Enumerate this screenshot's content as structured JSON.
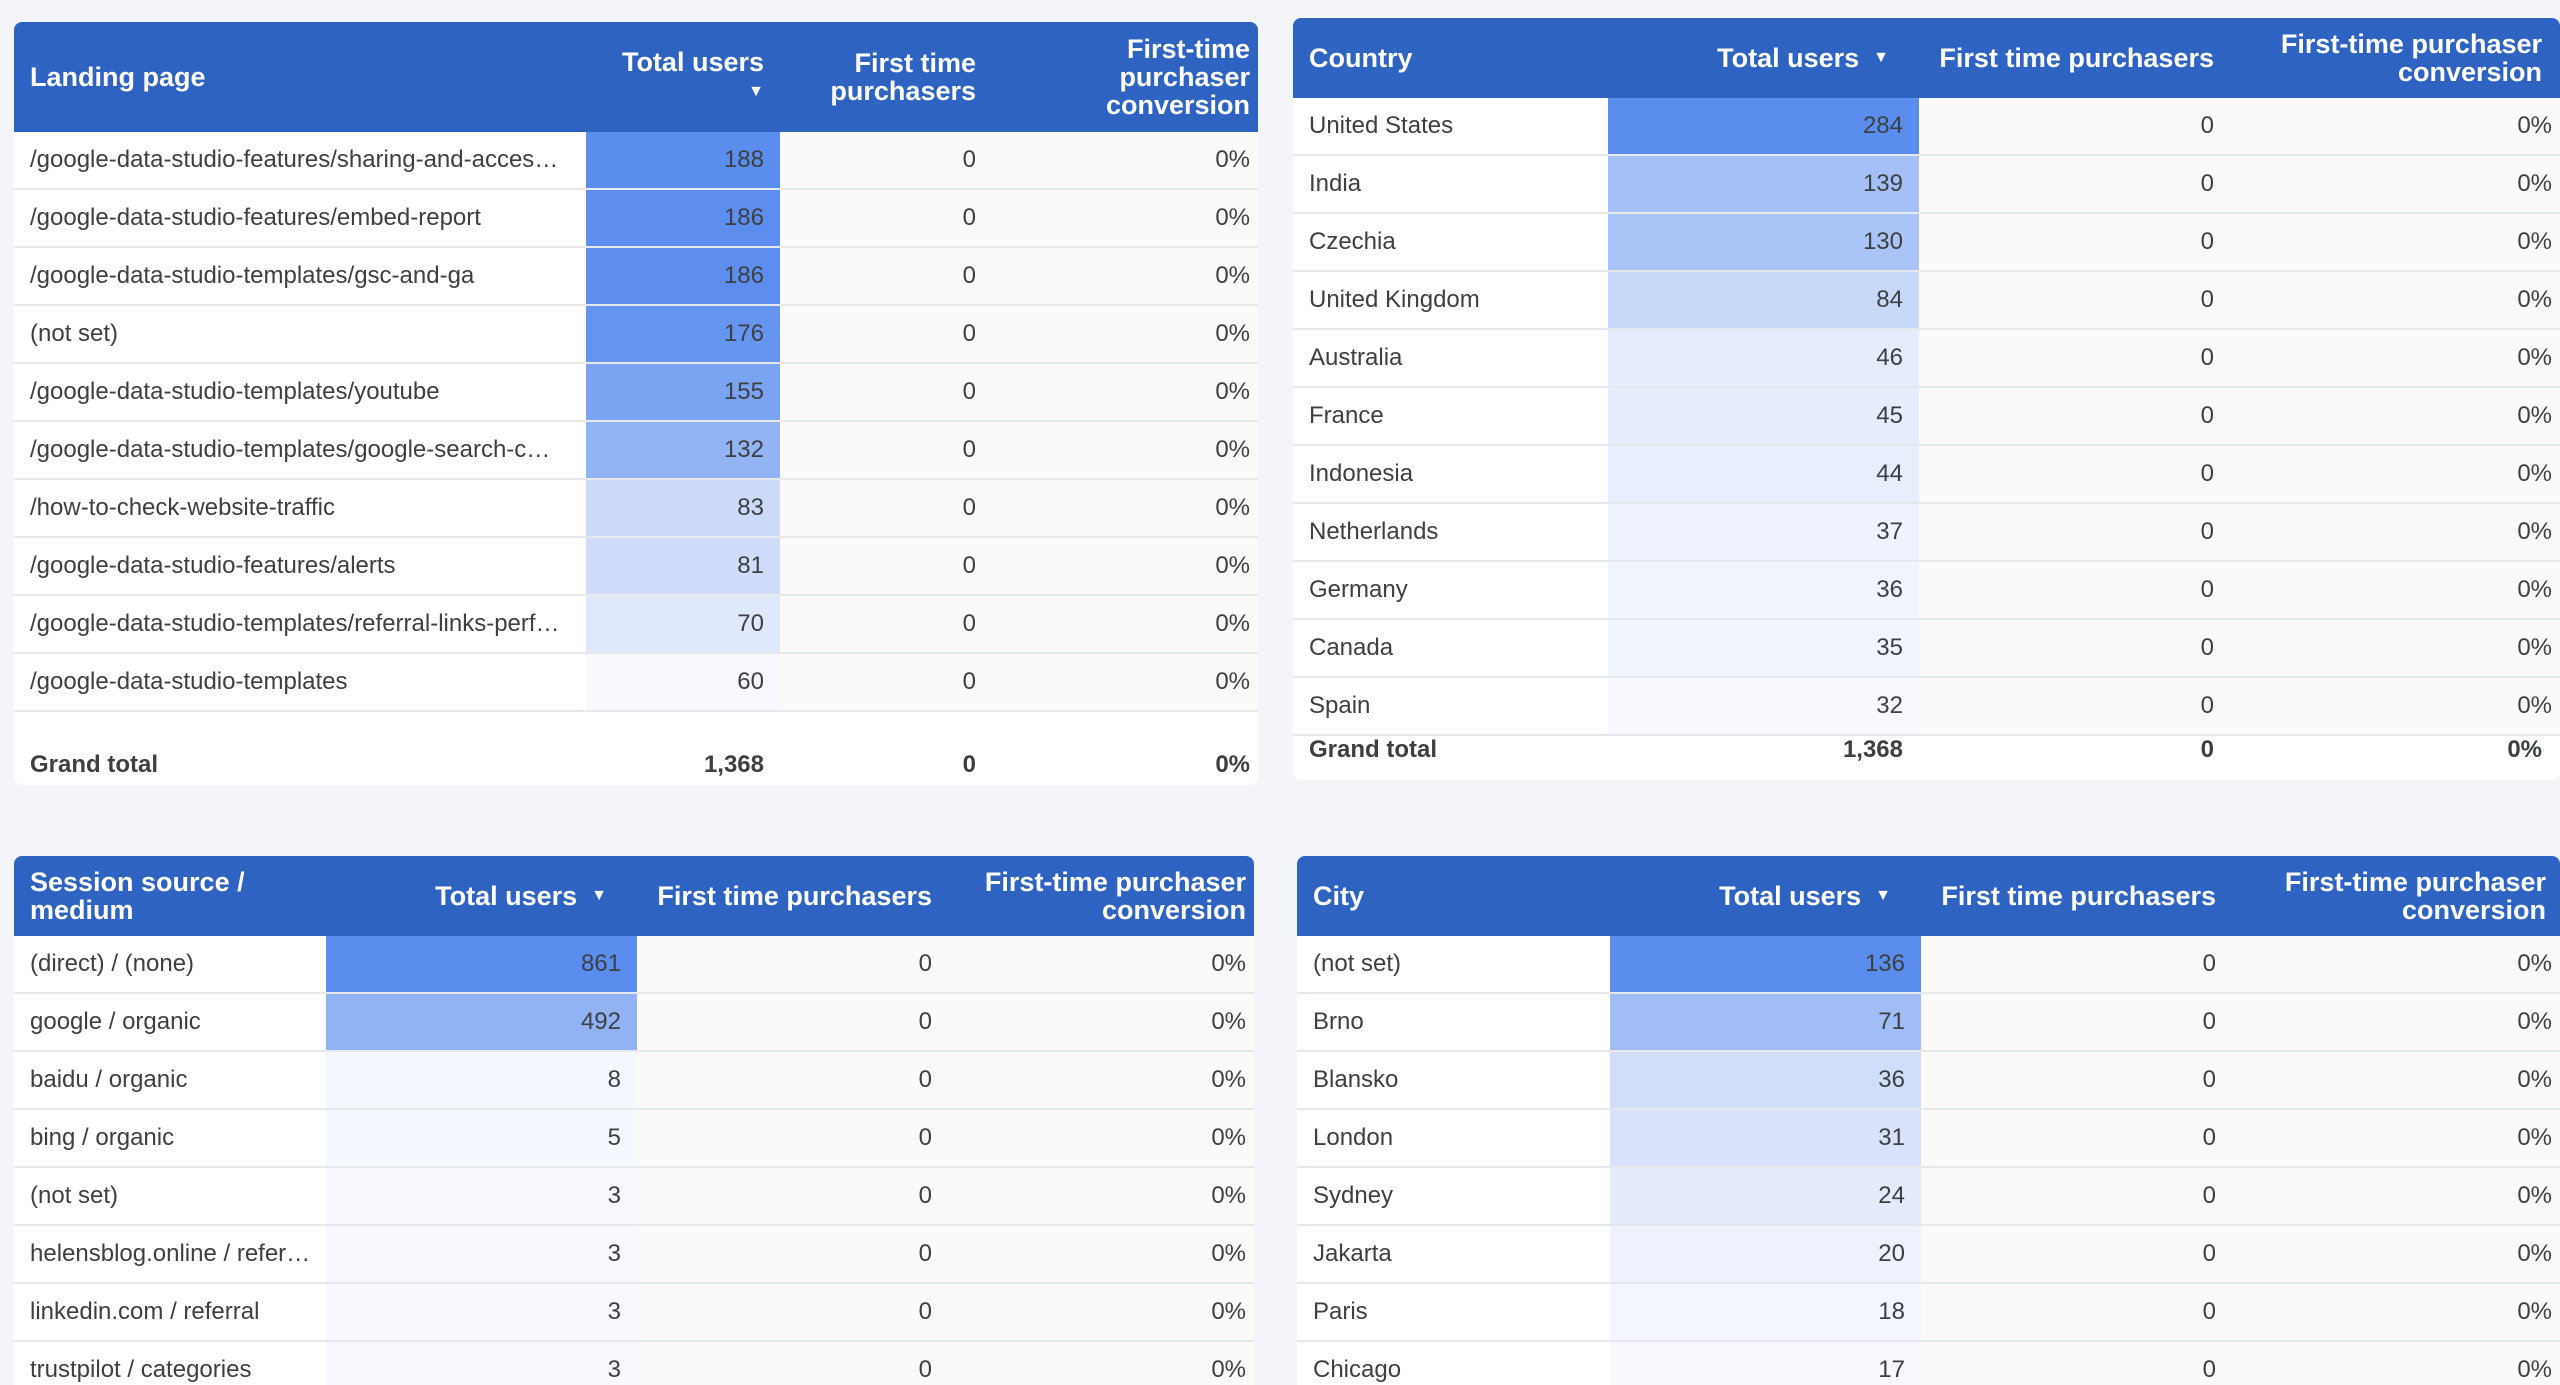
{
  "colors": {
    "header": "#2f63c2",
    "heat_max": "#5b8def",
    "heat_min": "#f7f9fe",
    "zero_cell": "#fcfaf8"
  },
  "tables": [
    {
      "id": "landing",
      "headers": {
        "dimension": "Landing page",
        "total_users": "Total users",
        "first_time": "First time purchasers",
        "conversion": "First-time purchaser conversion"
      },
      "sort_icon": "sort-descending-icon",
      "rows": [
        {
          "label": "/google-data-studio-features/sharing-and-acces…",
          "users": "188",
          "first": "0",
          "conv": "0%"
        },
        {
          "label": "/google-data-studio-features/embed-report",
          "users": "186",
          "first": "0",
          "conv": "0%"
        },
        {
          "label": "/google-data-studio-templates/gsc-and-ga",
          "users": "186",
          "first": "0",
          "conv": "0%"
        },
        {
          "label": "(not set)",
          "users": "176",
          "first": "0",
          "conv": "0%"
        },
        {
          "label": "/google-data-studio-templates/youtube",
          "users": "155",
          "first": "0",
          "conv": "0%"
        },
        {
          "label": "/google-data-studio-templates/google-search-c…",
          "users": "132",
          "first": "0",
          "conv": "0%"
        },
        {
          "label": "/how-to-check-website-traffic",
          "users": "83",
          "first": "0",
          "conv": "0%"
        },
        {
          "label": "/google-data-studio-features/alerts",
          "users": "81",
          "first": "0",
          "conv": "0%"
        },
        {
          "label": "/google-data-studio-templates/referral-links-perf…",
          "users": "70",
          "first": "0",
          "conv": "0%"
        },
        {
          "label": "/google-data-studio-templates",
          "users": "60",
          "first": "0",
          "conv": "0%"
        }
      ],
      "grand_total": {
        "label": "Grand total",
        "users": "1,368",
        "first": "0",
        "conv": "0%"
      }
    },
    {
      "id": "country",
      "headers": {
        "dimension": "Country",
        "total_users": "Total users",
        "first_time": "First time purchasers",
        "conversion": "First-time purchaser conversion"
      },
      "sort_icon": "sort-descending-icon",
      "rows": [
        {
          "label": "United States",
          "users": "284",
          "first": "0",
          "conv": "0%"
        },
        {
          "label": "India",
          "users": "139",
          "first": "0",
          "conv": "0%"
        },
        {
          "label": "Czechia",
          "users": "130",
          "first": "0",
          "conv": "0%"
        },
        {
          "label": "United Kingdom",
          "users": "84",
          "first": "0",
          "conv": "0%"
        },
        {
          "label": "Australia",
          "users": "46",
          "first": "0",
          "conv": "0%"
        },
        {
          "label": "France",
          "users": "45",
          "first": "0",
          "conv": "0%"
        },
        {
          "label": "Indonesia",
          "users": "44",
          "first": "0",
          "conv": "0%"
        },
        {
          "label": "Netherlands",
          "users": "37",
          "first": "0",
          "conv": "0%"
        },
        {
          "label": "Germany",
          "users": "36",
          "first": "0",
          "conv": "0%"
        },
        {
          "label": "Canada",
          "users": "35",
          "first": "0",
          "conv": "0%"
        },
        {
          "label": "Spain",
          "users": "32",
          "first": "0",
          "conv": "0%"
        }
      ],
      "grand_total": {
        "label": "Grand total",
        "users": "1,368",
        "first": "0",
        "conv": "0%"
      }
    },
    {
      "id": "source",
      "headers": {
        "dimension": "Session source / medium",
        "total_users": "Total users",
        "first_time": "First time purchasers",
        "conversion": "First-time purchaser conversion"
      },
      "sort_icon": "sort-descending-icon",
      "rows": [
        {
          "label": "(direct) / (none)",
          "users": "861",
          "first": "0",
          "conv": "0%"
        },
        {
          "label": "google / organic",
          "users": "492",
          "first": "0",
          "conv": "0%"
        },
        {
          "label": "baidu / organic",
          "users": "8",
          "first": "0",
          "conv": "0%"
        },
        {
          "label": "bing / organic",
          "users": "5",
          "first": "0",
          "conv": "0%"
        },
        {
          "label": "(not set)",
          "users": "3",
          "first": "0",
          "conv": "0%"
        },
        {
          "label": "helensblog.online / refer…",
          "users": "3",
          "first": "0",
          "conv": "0%"
        },
        {
          "label": "linkedin.com / referral",
          "users": "3",
          "first": "0",
          "conv": "0%"
        },
        {
          "label": "trustpilot / categories",
          "users": "3",
          "first": "0",
          "conv": "0%"
        }
      ]
    },
    {
      "id": "city",
      "headers": {
        "dimension": "City",
        "total_users": "Total users",
        "first_time": "First time purchasers",
        "conversion": "First-time purchaser conversion"
      },
      "sort_icon": "sort-descending-icon",
      "rows": [
        {
          "label": "(not set)",
          "users": "136",
          "first": "0",
          "conv": "0%"
        },
        {
          "label": "Brno",
          "users": "71",
          "first": "0",
          "conv": "0%"
        },
        {
          "label": "Blansko",
          "users": "36",
          "first": "0",
          "conv": "0%"
        },
        {
          "label": "London",
          "users": "31",
          "first": "0",
          "conv": "0%"
        },
        {
          "label": "Sydney",
          "users": "24",
          "first": "0",
          "conv": "0%"
        },
        {
          "label": "Jakarta",
          "users": "20",
          "first": "0",
          "conv": "0%"
        },
        {
          "label": "Paris",
          "users": "18",
          "first": "0",
          "conv": "0%"
        },
        {
          "label": "Chicago",
          "users": "17",
          "first": "0",
          "conv": "0%"
        }
      ]
    }
  ]
}
